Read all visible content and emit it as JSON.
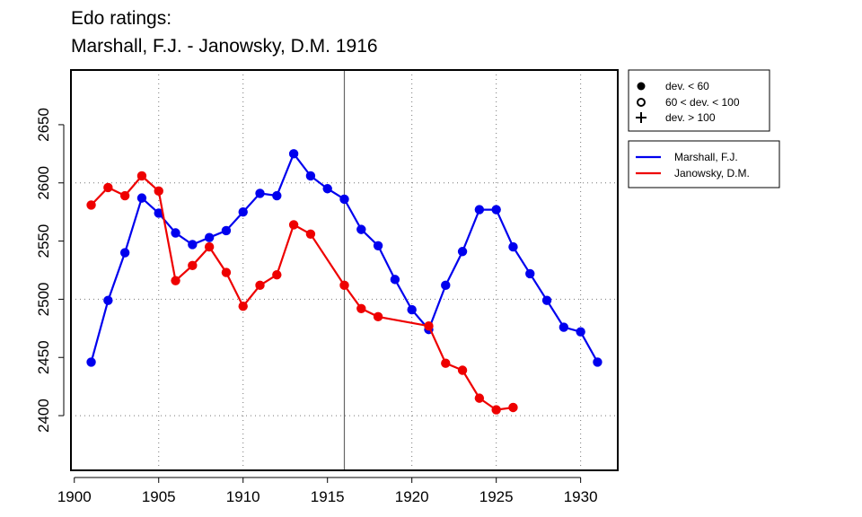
{
  "chart_data": {
    "type": "line",
    "title": "Edo ratings:",
    "subtitle": "Marshall, F.J. - Janowsky, D.M. 1916",
    "xlabel": "",
    "ylabel": "",
    "xlim": [
      1899.8,
      1932.2
    ],
    "ylim": [
      2353,
      2697
    ],
    "x_ticks": [
      1900,
      1905,
      1910,
      1915,
      1920,
      1925,
      1930
    ],
    "y_ticks": [
      2400,
      2450,
      2500,
      2550,
      2600,
      2650
    ],
    "grid_x": [
      1905,
      1910,
      1920,
      1925,
      1930
    ],
    "grid_y": [
      2400,
      2500,
      2600
    ],
    "marker_line_x": 1916,
    "grid": "dotted",
    "legend_placement": "right, outside plot",
    "deviation_legend": [
      {
        "marker": "filled-circle",
        "label": "dev. < 60"
      },
      {
        "marker": "open-circle",
        "label": "60 < dev. < 100"
      },
      {
        "marker": "plus",
        "label": "dev. > 100"
      }
    ],
    "series": [
      {
        "name": "Marshall, F.J.",
        "color": "#0000ee",
        "x": [
          1901,
          1902,
          1903,
          1904,
          1905,
          1906,
          1907,
          1908,
          1909,
          1910,
          1911,
          1912,
          1913,
          1914,
          1915,
          1916,
          1917,
          1918,
          1919,
          1920,
          1921,
          1922,
          1923,
          1924,
          1925,
          1926,
          1927,
          1928,
          1929,
          1930,
          1931
        ],
        "y": [
          2446,
          2499,
          2540,
          2587,
          2574,
          2557,
          2547,
          2553,
          2559,
          2575,
          2591,
          2589,
          2625,
          2606,
          2595,
          2586,
          2560,
          2546,
          2517,
          2491,
          2474,
          2512,
          2541,
          2577,
          2577,
          2545,
          2522,
          2499,
          2476,
          2472,
          2446
        ]
      },
      {
        "name": "Janowsky, D.M.",
        "color": "#ee0000",
        "x": [
          1901,
          1902,
          1903,
          1904,
          1905,
          1906,
          1907,
          1908,
          1909,
          1910,
          1911,
          1912,
          1913,
          1914,
          1916,
          1917,
          1918,
          1921,
          1922,
          1923,
          1924,
          1925,
          1926
        ],
        "y": [
          2581,
          2596,
          2589,
          2606,
          2593,
          2516,
          2529,
          2545,
          2523,
          2494,
          2512,
          2521,
          2564,
          2556,
          2512,
          2492,
          2485,
          2477,
          2445,
          2439,
          2415,
          2405,
          2407
        ]
      }
    ]
  }
}
